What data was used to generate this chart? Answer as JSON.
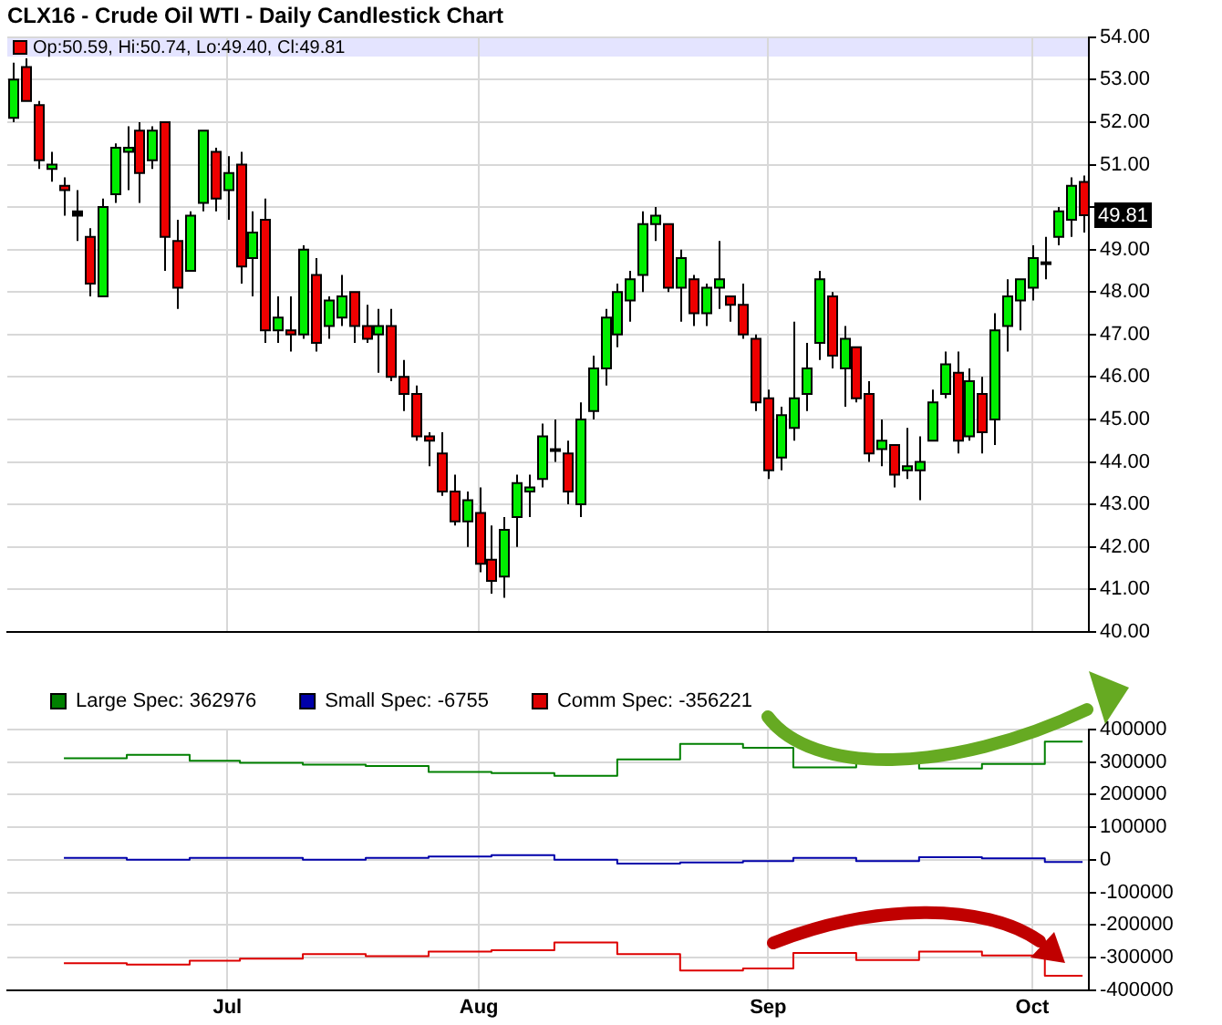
{
  "chart_data": [
    {
      "type": "candlestick",
      "title": "CLX16 - Crude Oil WTI - Daily Candlestick Chart",
      "categories": [
        null,
        null,
        null,
        null,
        null,
        null,
        null,
        null,
        null,
        null,
        null,
        null,
        null,
        null,
        null,
        null,
        null,
        null,
        null,
        null,
        null,
        null,
        null,
        null,
        null,
        null,
        null,
        null,
        null,
        null,
        null,
        null,
        null,
        null,
        null,
        null,
        null,
        null,
        null,
        null,
        null,
        null,
        null,
        null,
        null,
        null,
        null,
        null,
        null,
        null,
        null,
        null,
        null,
        null,
        null,
        null,
        null,
        null,
        null,
        null,
        null,
        null,
        null,
        null,
        null,
        null,
        null,
        null,
        null,
        null,
        null,
        null,
        null,
        null,
        null,
        null,
        null,
        null,
        null,
        null,
        null,
        null,
        null,
        null,
        null,
        null
      ],
      "ohlc": [
        [
          52.1,
          53.4,
          52.0,
          53.0
        ],
        [
          53.3,
          53.5,
          52.5,
          52.5
        ],
        [
          52.4,
          52.5,
          50.9,
          51.1
        ],
        [
          50.9,
          51.3,
          50.6,
          51.0
        ],
        [
          50.5,
          50.7,
          49.8,
          50.4
        ],
        [
          49.9,
          50.4,
          49.2,
          49.8
        ],
        [
          49.3,
          49.5,
          47.9,
          48.2
        ],
        [
          47.9,
          50.2,
          47.9,
          50.0
        ],
        [
          50.3,
          51.5,
          50.1,
          51.4
        ],
        [
          51.3,
          51.9,
          50.4,
          51.4
        ],
        [
          51.8,
          52.0,
          50.1,
          50.8
        ],
        [
          51.1,
          51.9,
          50.9,
          51.8
        ],
        [
          52.0,
          52.0,
          48.5,
          49.3
        ],
        [
          49.2,
          49.7,
          47.6,
          48.1
        ],
        [
          48.5,
          49.9,
          48.5,
          49.8
        ],
        [
          50.1,
          51.8,
          49.9,
          51.8
        ],
        [
          51.3,
          51.4,
          49.9,
          50.2
        ],
        [
          50.4,
          51.2,
          49.7,
          50.8
        ],
        [
          51.0,
          51.3,
          48.2,
          48.6
        ],
        [
          48.8,
          49.9,
          47.9,
          49.4
        ],
        [
          49.7,
          50.2,
          46.8,
          47.1
        ],
        [
          47.1,
          47.9,
          46.8,
          47.4
        ],
        [
          47.1,
          47.9,
          46.6,
          47.0
        ],
        [
          47.0,
          49.1,
          46.9,
          49.0
        ],
        [
          48.4,
          48.8,
          46.6,
          46.8
        ],
        [
          47.2,
          47.9,
          46.9,
          47.8
        ],
        [
          47.4,
          48.4,
          47.2,
          47.9
        ],
        [
          48.0,
          48.0,
          46.8,
          47.2
        ],
        [
          47.2,
          47.7,
          46.8,
          46.9
        ],
        [
          47.0,
          47.6,
          46.1,
          47.2
        ],
        [
          47.2,
          47.6,
          45.9,
          46.0
        ],
        [
          46.0,
          46.4,
          45.2,
          45.6
        ],
        [
          45.6,
          45.8,
          44.5,
          44.6
        ],
        [
          44.6,
          44.7,
          43.9,
          44.5
        ],
        [
          44.2,
          44.7,
          43.2,
          43.3
        ],
        [
          43.3,
          43.7,
          42.5,
          42.6
        ],
        [
          42.6,
          43.3,
          42.0,
          43.1
        ],
        [
          42.8,
          43.4,
          41.4,
          41.6
        ],
        [
          41.7,
          42.5,
          40.9,
          41.2
        ],
        [
          41.3,
          42.7,
          40.8,
          42.4
        ],
        [
          42.7,
          43.7,
          42.0,
          43.5
        ],
        [
          43.3,
          43.7,
          42.7,
          43.4
        ],
        [
          43.6,
          44.9,
          43.4,
          44.6
        ],
        [
          44.3,
          45.0,
          44.0,
          44.3
        ],
        [
          44.2,
          44.5,
          43.0,
          43.3
        ],
        [
          43.0,
          45.4,
          42.7,
          45.0
        ],
        [
          45.2,
          46.5,
          45.0,
          46.2
        ],
        [
          46.2,
          47.6,
          45.8,
          47.4
        ],
        [
          47.0,
          48.2,
          46.7,
          48.0
        ],
        [
          47.8,
          48.5,
          47.3,
          48.3
        ],
        [
          48.4,
          49.9,
          48.0,
          49.6
        ],
        [
          49.6,
          50.0,
          49.2,
          49.8
        ],
        [
          49.6,
          49.6,
          48.0,
          48.1
        ],
        [
          48.1,
          49.0,
          47.3,
          48.8
        ],
        [
          48.3,
          48.4,
          47.2,
          47.5
        ],
        [
          47.5,
          48.2,
          47.2,
          48.1
        ],
        [
          48.1,
          49.2,
          47.6,
          48.3
        ],
        [
          47.9,
          47.9,
          47.3,
          47.7
        ],
        [
          47.7,
          48.2,
          46.9,
          47.0
        ],
        [
          46.9,
          47.0,
          45.2,
          45.4
        ],
        [
          45.5,
          45.7,
          43.6,
          43.8
        ],
        [
          44.1,
          45.3,
          43.8,
          45.1
        ],
        [
          44.8,
          47.3,
          44.5,
          45.5
        ],
        [
          45.6,
          46.8,
          45.2,
          46.2
        ],
        [
          46.8,
          48.5,
          46.4,
          48.3
        ],
        [
          47.9,
          48.0,
          46.2,
          46.5
        ],
        [
          46.2,
          47.2,
          45.3,
          46.9
        ],
        [
          46.7,
          46.7,
          45.4,
          45.5
        ],
        [
          45.6,
          45.9,
          44.0,
          44.2
        ],
        [
          44.3,
          45.0,
          43.9,
          44.5
        ],
        [
          44.4,
          44.4,
          43.4,
          43.7
        ],
        [
          43.8,
          44.8,
          43.6,
          43.9
        ],
        [
          43.8,
          44.6,
          43.1,
          44.0
        ],
        [
          44.5,
          45.7,
          44.5,
          45.4
        ],
        [
          45.6,
          46.6,
          45.5,
          46.3
        ],
        [
          46.1,
          46.6,
          44.2,
          44.5
        ],
        [
          44.6,
          46.2,
          44.5,
          45.9
        ],
        [
          45.6,
          46.0,
          44.2,
          44.7
        ],
        [
          45.0,
          47.5,
          44.4,
          47.1
        ],
        [
          47.2,
          48.3,
          46.6,
          47.9
        ],
        [
          47.8,
          48.3,
          47.1,
          48.3
        ],
        [
          48.1,
          49.1,
          47.8,
          48.8
        ],
        [
          48.7,
          49.3,
          48.3,
          48.7
        ],
        [
          49.3,
          50.0,
          49.1,
          49.9
        ],
        [
          49.7,
          50.7,
          49.3,
          50.5
        ],
        [
          50.59,
          50.74,
          49.4,
          49.81
        ]
      ],
      "colors": [
        "#00ee00",
        "#ee0000",
        "#ee0000",
        "#00ee00",
        "#ee0000",
        "#000000",
        "#ee0000",
        "#00ee00",
        "#00ee00",
        "#00ee00",
        "#ee0000",
        "#00ee00",
        "#ee0000",
        "#ee0000",
        "#00ee00",
        "#00ee00",
        "#ee0000",
        "#00ee00",
        "#ee0000",
        "#00ee00",
        "#ee0000",
        "#00ee00",
        "#ee0000",
        "#00ee00",
        "#ee0000",
        "#00ee00",
        "#00ee00",
        "#ee0000",
        "#ee0000",
        "#00ee00",
        "#ee0000",
        "#ee0000",
        "#ee0000",
        "#ee0000",
        "#ee0000",
        "#ee0000",
        "#00ee00",
        "#ee0000",
        "#ee0000",
        "#00ee00",
        "#00ee00",
        "#00ee00",
        "#00ee00",
        "#000000",
        "#ee0000",
        "#00ee00",
        "#00ee00",
        "#00ee00",
        "#00ee00",
        "#00ee00",
        "#00ee00",
        "#00ee00",
        "#ee0000",
        "#00ee00",
        "#ee0000",
        "#00ee00",
        "#00ee00",
        "#ee0000",
        "#ee0000",
        "#ee0000",
        "#ee0000",
        "#00ee00",
        "#00ee00",
        "#00ee00",
        "#00ee00",
        "#ee0000",
        "#00ee00",
        "#ee0000",
        "#ee0000",
        "#00ee00",
        "#ee0000",
        "#00ee00",
        "#00ee00",
        "#00ee00",
        "#00ee00",
        "#ee0000",
        "#00ee00",
        "#ee0000",
        "#00ee00",
        "#00ee00",
        "#00ee00",
        "#00ee00",
        "#000000",
        "#00ee00",
        "#00ee00",
        "#ee0000"
      ],
      "ylim": [
        40,
        54
      ],
      "yticks": [
        {
          "value": 40,
          "label": "40.00"
        },
        {
          "value": 41,
          "label": "41.00"
        },
        {
          "value": 42,
          "label": "42.00"
        },
        {
          "value": 43,
          "label": "43.00"
        },
        {
          "value": 44,
          "label": "44.00"
        },
        {
          "value": 45,
          "label": "45.00"
        },
        {
          "value": 46,
          "label": "46.00"
        },
        {
          "value": 47,
          "label": "47.00"
        },
        {
          "value": 48,
          "label": "48.00"
        },
        {
          "value": 49,
          "label": "49.00"
        },
        {
          "value": 50,
          "label": null
        },
        {
          "value": 51,
          "label": "51.00"
        },
        {
          "value": 52,
          "label": "52.00"
        },
        {
          "value": 53,
          "label": "53.00"
        },
        {
          "value": 54,
          "label": "54.00"
        }
      ],
      "grid": true,
      "tick_labels": "y",
      "annotations": [
        "Op:50.59, Hi:50.74, Lo:49.40, Cl:49.81",
        "49.81"
      ]
    },
    {
      "type": "step",
      "categories": [
        null,
        null,
        null,
        null,
        null,
        null,
        null,
        null,
        null,
        null,
        null,
        null,
        null,
        null,
        null,
        null,
        null,
        "Jul",
        null,
        null,
        null,
        null,
        null,
        null,
        null,
        null,
        null,
        null,
        null,
        null,
        null,
        null,
        null,
        null,
        null,
        null,
        null,
        "Aug",
        null,
        null,
        null,
        null,
        null,
        null,
        null,
        null,
        null,
        null,
        null,
        null,
        null,
        null,
        null,
        null,
        null,
        null,
        null,
        null,
        null,
        null,
        "Sep",
        null,
        null,
        null,
        null,
        null,
        null,
        null,
        null,
        null,
        null,
        null,
        null,
        null,
        null,
        null,
        null,
        null,
        null,
        null,
        null,
        "Oct",
        null,
        null,
        null,
        null
      ],
      "series": [
        {
          "name": "Large Spec: 362976",
          "color": "#008000",
          "values": [
            null,
            null,
            null,
            null,
            312000,
            312000,
            312000,
            312000,
            312000,
            322000,
            322000,
            322000,
            322000,
            322000,
            304000,
            304000,
            304000,
            304000,
            298000,
            298000,
            298000,
            298000,
            298000,
            292000,
            292000,
            292000,
            292000,
            292000,
            288000,
            288000,
            288000,
            288000,
            288000,
            270000,
            270000,
            270000,
            270000,
            270000,
            266000,
            266000,
            266000,
            266000,
            266000,
            258000,
            258000,
            258000,
            258000,
            258000,
            308000,
            308000,
            308000,
            308000,
            308000,
            356000,
            356000,
            356000,
            356000,
            356000,
            344000,
            344000,
            344000,
            344000,
            284000,
            284000,
            284000,
            284000,
            284000,
            312000,
            312000,
            312000,
            312000,
            312000,
            280000,
            280000,
            280000,
            280000,
            280000,
            294000,
            294000,
            294000,
            294000,
            294000,
            362976,
            362976,
            362976,
            362976
          ]
        },
        {
          "name": "Small Spec: -6755",
          "color": "#0000aa",
          "values": [
            null,
            null,
            null,
            null,
            6000,
            6000,
            6000,
            6000,
            6000,
            0,
            0,
            0,
            0,
            0,
            6000,
            6000,
            6000,
            6000,
            6000,
            6000,
            6000,
            6000,
            6000,
            0,
            0,
            0,
            0,
            0,
            6000,
            6000,
            6000,
            6000,
            6000,
            10000,
            10000,
            10000,
            10000,
            10000,
            14000,
            14000,
            14000,
            14000,
            14000,
            0,
            0,
            0,
            0,
            0,
            -12000,
            -12000,
            -12000,
            -12000,
            -12000,
            -8000,
            -8000,
            -8000,
            -8000,
            -8000,
            -4000,
            -4000,
            -4000,
            -4000,
            6000,
            6000,
            6000,
            6000,
            6000,
            -4000,
            -4000,
            -4000,
            -4000,
            -4000,
            8000,
            8000,
            8000,
            8000,
            8000,
            4000,
            4000,
            4000,
            4000,
            4000,
            -6755,
            -6755,
            -6755,
            -6755
          ]
        },
        {
          "name": "Comm Spec: -356221",
          "color": "#dd0000",
          "values": [
            null,
            null,
            null,
            null,
            -318000,
            -318000,
            -318000,
            -318000,
            -318000,
            -322000,
            -322000,
            -322000,
            -322000,
            -322000,
            -310000,
            -310000,
            -310000,
            -310000,
            -304000,
            -304000,
            -304000,
            -304000,
            -304000,
            -290000,
            -290000,
            -290000,
            -290000,
            -290000,
            -296000,
            -296000,
            -296000,
            -296000,
            -296000,
            -282000,
            -282000,
            -282000,
            -282000,
            -282000,
            -278000,
            -278000,
            -278000,
            -278000,
            -278000,
            -254000,
            -254000,
            -254000,
            -254000,
            -254000,
            -290000,
            -290000,
            -290000,
            -290000,
            -290000,
            -340000,
            -340000,
            -340000,
            -340000,
            -340000,
            -334000,
            -334000,
            -334000,
            -334000,
            -286000,
            -286000,
            -286000,
            -286000,
            -286000,
            -308000,
            -308000,
            -308000,
            -308000,
            -308000,
            -282000,
            -282000,
            -282000,
            -282000,
            -282000,
            -294000,
            -294000,
            -294000,
            -294000,
            -294000,
            -356221,
            -356221,
            -356221,
            -356221
          ]
        }
      ],
      "ylim": [
        -400000,
        400000
      ],
      "yticks": [
        -400000,
        -300000,
        -200000,
        -100000,
        0,
        100000,
        200000,
        300000,
        400000
      ],
      "grid": true,
      "legend": "top left"
    }
  ]
}
